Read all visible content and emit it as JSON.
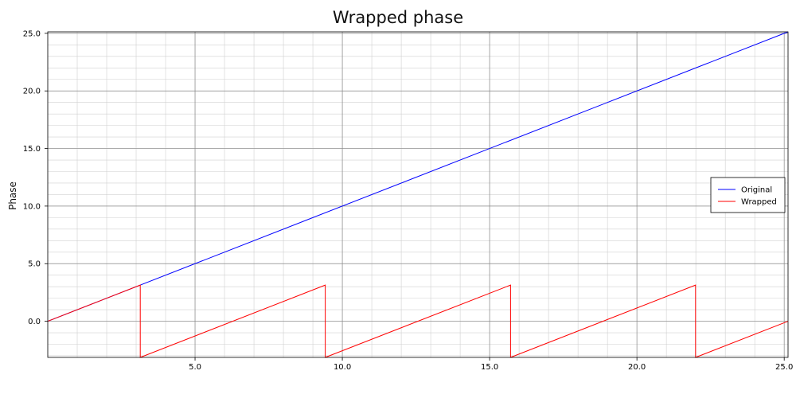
{
  "chart_data": {
    "type": "line",
    "title": "Wrapped phase",
    "xlabel": "",
    "ylabel": "Phase",
    "xlim": [
      0,
      25.13
    ],
    "ylim": [
      -3.14,
      25.13
    ],
    "x_ticks": [
      5.0,
      10.0,
      15.0,
      20.0,
      25.0
    ],
    "y_ticks": [
      0.0,
      5.0,
      10.0,
      15.0,
      20.0,
      25.0
    ],
    "x_tick_labels": [
      "5.0",
      "10.0",
      "15.0",
      "20.0",
      "25.0"
    ],
    "y_tick_labels": [
      "0.0",
      "5.0",
      "10.0",
      "15.0",
      "20.0",
      "25.0"
    ],
    "grid": true,
    "legend": "right",
    "series": [
      {
        "name": "Original",
        "color": "#0000ff",
        "points": [
          [
            0,
            0
          ],
          [
            25.13,
            25.13
          ]
        ]
      },
      {
        "name": "Wrapped",
        "color": "#ff0000",
        "points": [
          [
            0,
            0
          ],
          [
            3.14,
            3.14
          ],
          [
            3.14,
            -3.14
          ],
          [
            9.42,
            3.14
          ],
          [
            9.42,
            -3.14
          ],
          [
            15.71,
            3.14
          ],
          [
            15.71,
            -3.14
          ],
          [
            21.99,
            3.14
          ],
          [
            21.99,
            -3.14
          ],
          [
            25.13,
            0
          ]
        ]
      }
    ]
  }
}
